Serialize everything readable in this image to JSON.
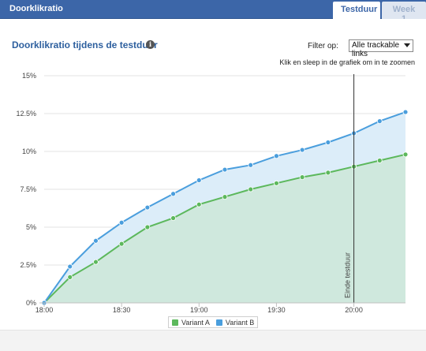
{
  "header": {
    "title": "Doorklikratio",
    "tabs": [
      {
        "label": "Testduur",
        "active": true
      },
      {
        "label": "Week 1",
        "active": false
      }
    ]
  },
  "chart_panel": {
    "title": "Doorklikratio tijdens de testduur",
    "info_icon": "info-icon",
    "filter": {
      "label": "Filter op:",
      "selected": "Alle trackable links"
    },
    "zoom_hint": "Klik en sleep in de grafiek om in te zoomen"
  },
  "colors": {
    "header_bg": "#3c66a8",
    "variant_a": "#5cb85c",
    "variant_b": "#4a9edd",
    "area_a": "#cfe8dd",
    "area_b": "#dcedf9"
  },
  "chart_data": {
    "type": "area",
    "x": [
      "18:00",
      "18:10",
      "18:20",
      "18:30",
      "18:40",
      "18:50",
      "19:00",
      "19:10",
      "19:20",
      "19:30",
      "19:40",
      "19:50",
      "20:00",
      "20:10",
      "20:20"
    ],
    "x_tick_labels": [
      "18:00",
      "18:30",
      "19:00",
      "19:30",
      "20:00"
    ],
    "y_tick_labels": [
      "0%",
      "2.5%",
      "5%",
      "7.5%",
      "10%",
      "12.5%",
      "15%"
    ],
    "ylim": [
      0,
      15
    ],
    "series": [
      {
        "name": "Variant A",
        "values": [
          0,
          1.7,
          2.7,
          3.9,
          5.0,
          5.6,
          6.5,
          7.0,
          7.5,
          7.9,
          8.3,
          8.6,
          9.0,
          9.4,
          9.8
        ]
      },
      {
        "name": "Variant B",
        "values": [
          0,
          2.4,
          4.1,
          5.3,
          6.3,
          7.2,
          8.1,
          8.8,
          9.1,
          9.7,
          10.1,
          10.6,
          11.2,
          12.0,
          12.6
        ]
      }
    ],
    "plot_line": {
      "x": "20:00",
      "label": "Einde testduur"
    },
    "legend_position": "bottom-center",
    "grid": true
  }
}
